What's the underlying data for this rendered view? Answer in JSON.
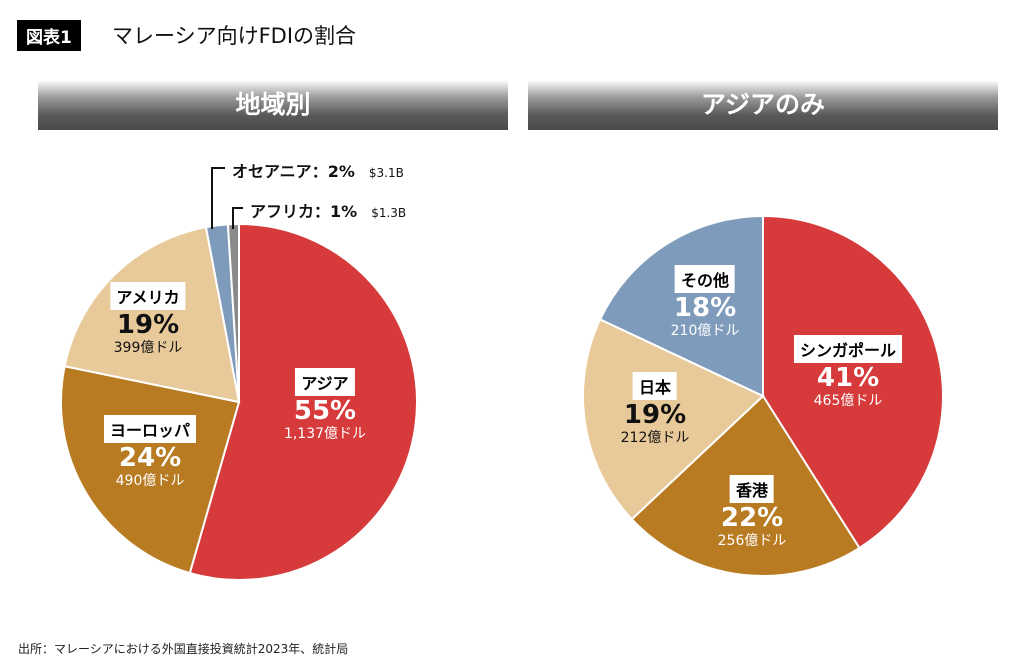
{
  "figure": {
    "tag": "図表1",
    "title": "マレーシア向けFDIの割合"
  },
  "chart_data": [
    {
      "type": "pie",
      "title": "地域別",
      "categories": [
        "アジア",
        "ヨーロッパ",
        "アメリカ",
        "オセアニア",
        "アフリカ"
      ],
      "values": [
        55,
        24,
        19,
        2,
        1
      ],
      "value_labels": [
        "55%",
        "24%",
        "19%",
        "2%",
        "1%"
      ],
      "amounts": [
        "1,137億ドル",
        "490億ドル",
        "399億ドル",
        "$3.1B",
        "$1.3B"
      ],
      "colors": [
        "#d63a3a",
        "#b87b22",
        "#e8c99a",
        "#7f9bbb",
        "#8a8a8a"
      ]
    },
    {
      "type": "pie",
      "title": "アジアのみ",
      "categories": [
        "シンガポール",
        "香港",
        "日本",
        "その他"
      ],
      "values": [
        41,
        22,
        19,
        18
      ],
      "value_labels": [
        "41%",
        "22%",
        "19%",
        "18%"
      ],
      "amounts": [
        "465億ドル",
        "256億ドル",
        "212億ドル",
        "210億ドル"
      ],
      "colors": [
        "#d63a3a",
        "#b87b22",
        "#e8c99a",
        "#7f9bbb"
      ]
    }
  ],
  "source": "出所：マレーシアにおける外国直接投資統計2023年、統計局"
}
